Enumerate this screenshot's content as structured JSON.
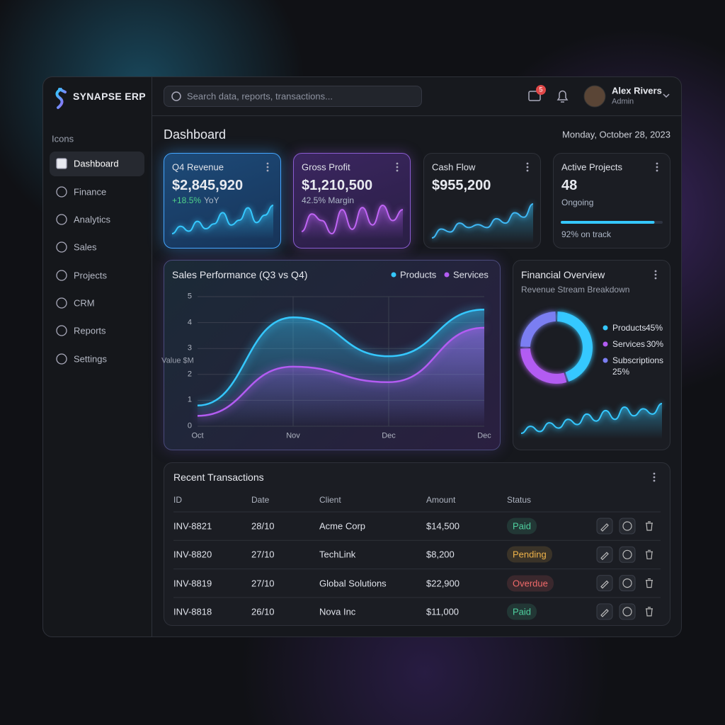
{
  "brand": "SYNAPSE ERP",
  "search_placeholder": "Search data, reports, transactions...",
  "notification_count": "5",
  "user": {
    "name": "Alex Rivers",
    "role": "Admin"
  },
  "sidebar": {
    "heading": "Icons",
    "items": [
      "Dashboard",
      "Finance",
      "Analytics",
      "Sales",
      "Projects",
      "CRM",
      "Reports",
      "Settings"
    ]
  },
  "page_title": "Dashboard",
  "date": "Monday, October 28, 2023",
  "kpis": [
    {
      "title": "Q4 Revenue",
      "value": "$2,845,920",
      "delta": "+18.5%",
      "note": "YoY",
      "color": "#35c8ff",
      "trend": [
        1,
        2.2,
        1.4,
        3,
        1.8,
        2.6,
        4.4,
        2.4,
        3.2,
        5.2,
        2.8,
        4,
        5.6
      ]
    },
    {
      "title": "Gross Profit",
      "value": "$1,210,500",
      "note": "42.5% Margin",
      "color": "#c065f5",
      "trend": [
        2,
        3.6,
        3,
        1.8,
        4,
        2.2,
        4.2,
        2.6,
        4.4,
        3,
        4
      ]
    },
    {
      "title": "Cash Flow",
      "value": "$955,200",
      "color": "#3fb8f5",
      "trend": [
        1,
        2.2,
        1.8,
        3,
        2.4,
        2.8,
        2.4,
        3.6,
        3,
        4.4,
        3.8,
        5.6
      ]
    },
    {
      "title": "Active Projects",
      "value": "48",
      "note": "Ongoing",
      "progress": {
        "value": 92,
        "label": "92% on track"
      },
      "color": "#35c8ff"
    }
  ],
  "sales_chart": {
    "type": "line",
    "title": "Sales Performance (Q3 vs Q4)",
    "y_label": "Value $M",
    "categories": [
      "Oct",
      "Nov",
      "Dec",
      "Dec"
    ],
    "series": [
      {
        "name": "Products",
        "color": "#35c8ff",
        "values": [
          0.8,
          4.2,
          2.7,
          4.5
        ]
      },
      {
        "name": "Services",
        "color": "#b35cf2",
        "values": [
          0.4,
          2.3,
          1.7,
          3.8
        ]
      }
    ],
    "ylim": [
      0,
      5
    ],
    "yticks": [
      0,
      1,
      2,
      3,
      4,
      5
    ],
    "grid": true
  },
  "finance": {
    "title": "Financial Overview",
    "subtitle": "Revenue Stream Breakdown",
    "chart": {
      "type": "pie",
      "categories": [
        "Products",
        "Services",
        "Subscriptions"
      ],
      "values": [
        45,
        30,
        25
      ],
      "value_labels": [
        "45%",
        "30%",
        "25%"
      ],
      "colors": [
        "#35c8ff",
        "#b35cf2",
        "#7b7ef2"
      ]
    },
    "trend": [
      1,
      1.8,
      1.2,
      2.2,
      1.6,
      2.6,
      2,
      3.2,
      2.4,
      3.6,
      2.6,
      4,
      3,
      3.8,
      3.2,
      4.4
    ]
  },
  "transactions": {
    "title": "Recent Transactions",
    "columns": [
      "ID",
      "Date",
      "Client",
      "Amount",
      "Status"
    ],
    "rows": [
      {
        "id": "INV-8821",
        "date": "28/10",
        "client": "Acme Corp",
        "amount": "$14,500",
        "status": "Paid",
        "status_color": "#4fd1a0"
      },
      {
        "id": "INV-8820",
        "date": "27/10",
        "client": "TechLink",
        "amount": "$8,200",
        "status": "Pending",
        "status_color": "#f0b44a"
      },
      {
        "id": "INV-8819",
        "date": "27/10",
        "client": "Global Solutions",
        "amount": "$22,900",
        "status": "Overdue",
        "status_color": "#f06a6a"
      },
      {
        "id": "INV-8818",
        "date": "26/10",
        "client": "Nova Inc",
        "amount": "$11,000",
        "status": "Paid",
        "status_color": "#4fd1a0"
      }
    ]
  }
}
